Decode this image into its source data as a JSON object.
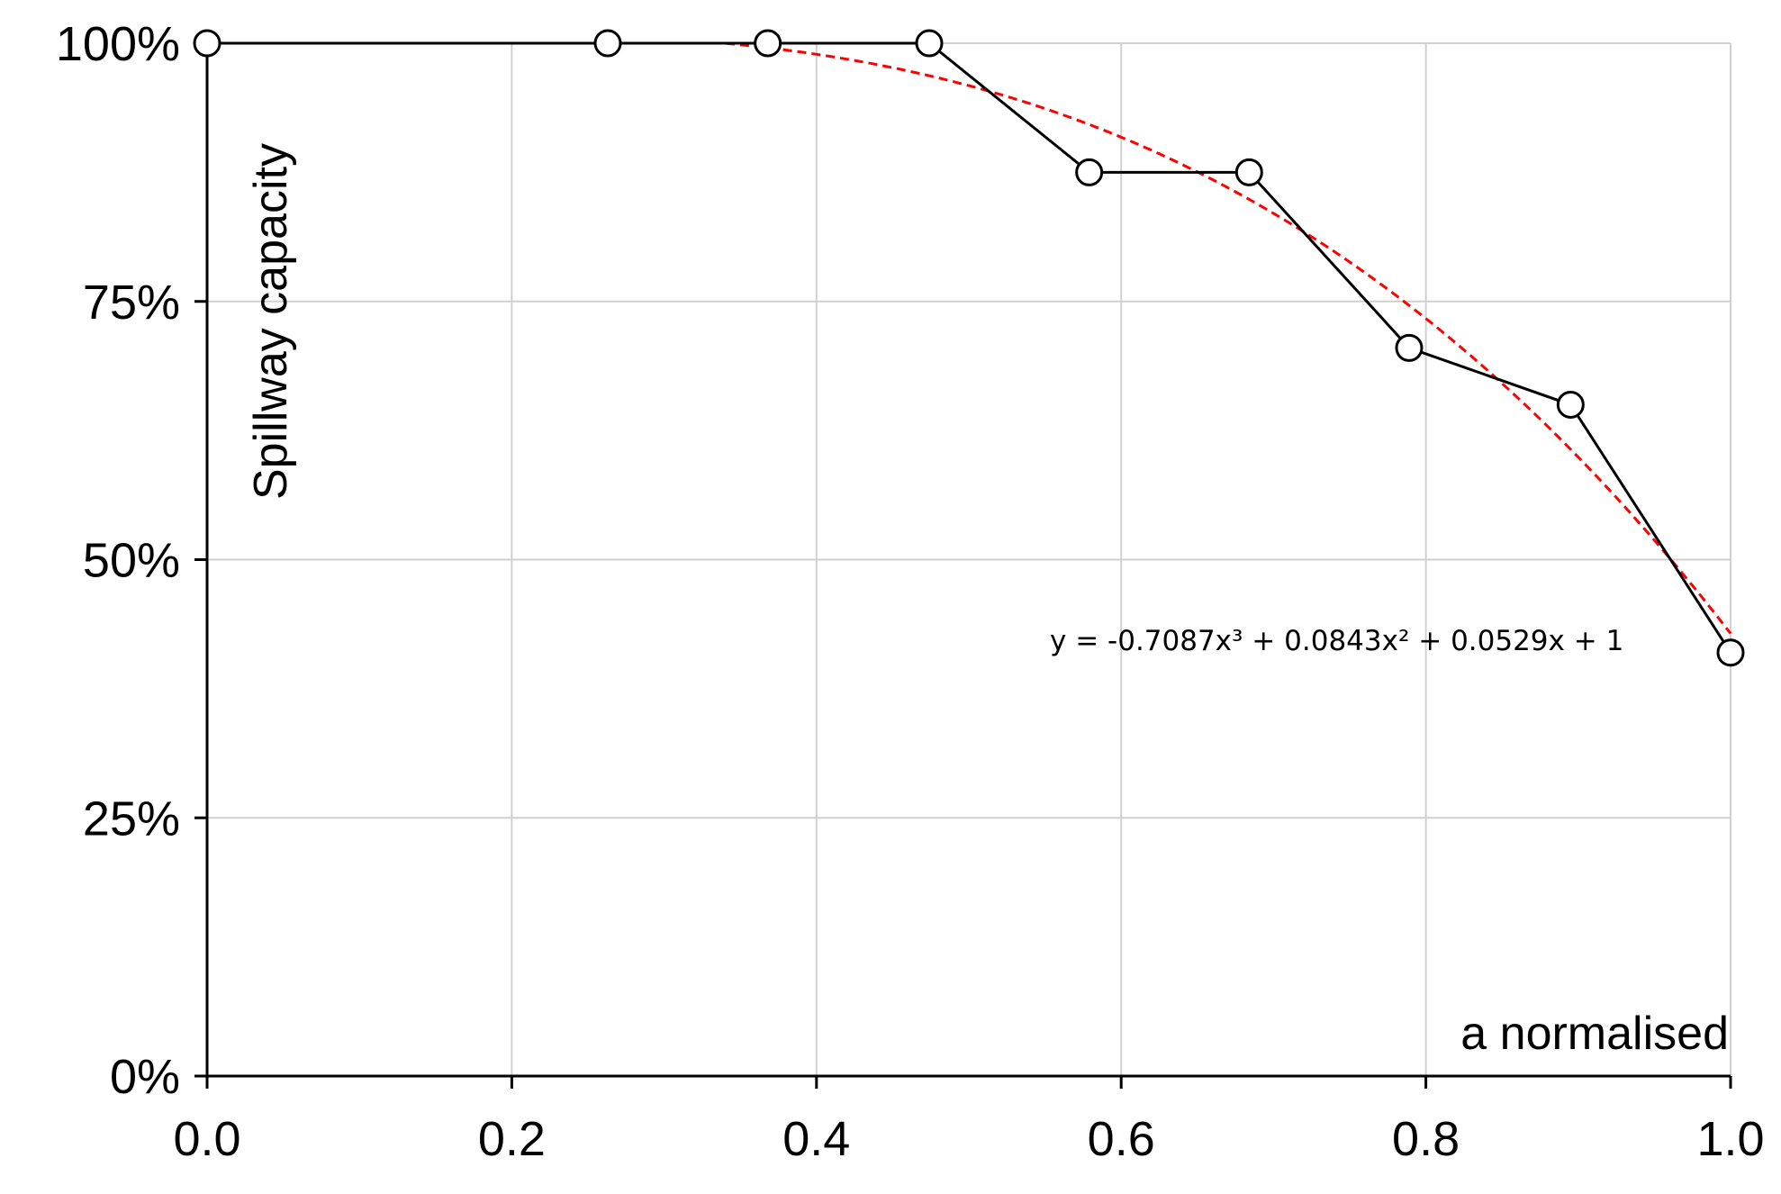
{
  "chart_data": {
    "type": "line",
    "title": "",
    "xlabel": "a normalised",
    "ylabel": "Spillway capacity",
    "xlim": [
      0,
      1
    ],
    "ylim": [
      0,
      1
    ],
    "x_ticks": [
      0,
      0.2,
      0.4,
      0.6,
      0.8,
      1.0
    ],
    "x_tick_labels": [
      "0.0",
      "0.2",
      "0.4",
      "0.6",
      "0.8",
      "1.0"
    ],
    "y_ticks": [
      0,
      0.25,
      0.5,
      0.75,
      1.0
    ],
    "y_tick_labels": [
      "0%",
      "25%",
      "50%",
      "75%",
      "100%"
    ],
    "grid": true,
    "legend": "none",
    "series": [
      {
        "style": "line-markers",
        "marker": "open-circle",
        "color": "#000000",
        "x": [
          0.0,
          0.263,
          0.368,
          0.474,
          0.579,
          0.684,
          0.789,
          0.895,
          1.0
        ],
        "y": [
          1.0,
          1.0,
          1.0,
          1.0,
          0.875,
          0.875,
          0.705,
          0.65,
          0.41
        ]
      },
      {
        "style": "dashed-trendline",
        "type": "polynomial",
        "order": 3,
        "color": "#ff0000",
        "coefficients": [
          -0.7087,
          0.0843,
          0.0529,
          1
        ],
        "equation_label": "y = -0.7087x³ + 0.0843x² + 0.0529x + 1"
      }
    ],
    "colors": {
      "grid": "#d0d0d0",
      "axis": "#000000",
      "data": "#000000",
      "trend": "#ff0000"
    }
  }
}
